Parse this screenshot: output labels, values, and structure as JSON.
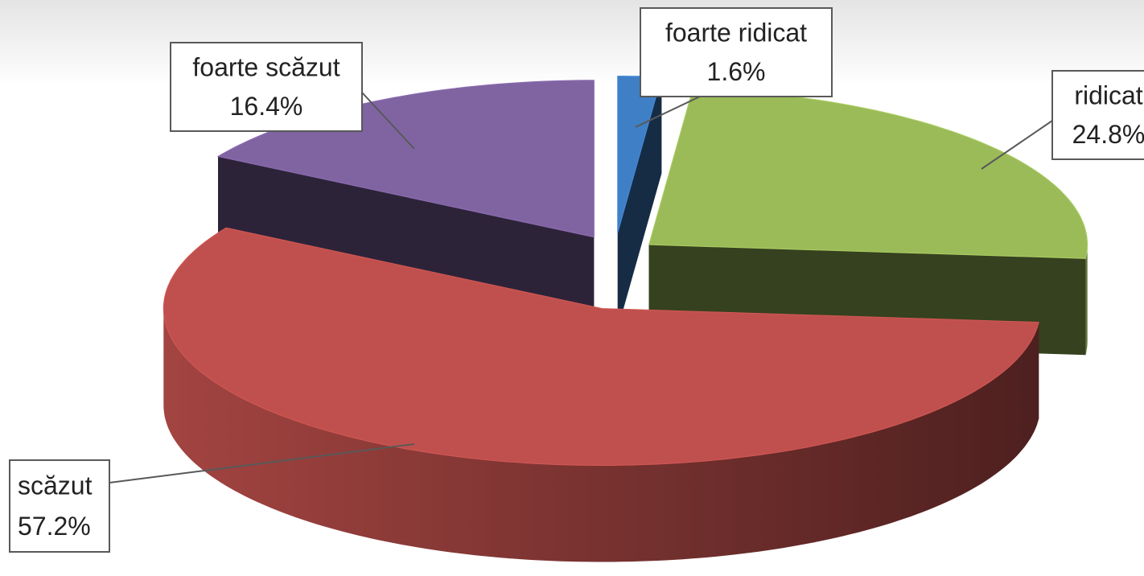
{
  "chart_data": {
    "type": "pie3d",
    "categories": [
      "foarte ridicat",
      "ridicat",
      "scăzut",
      "foarte scăzut"
    ],
    "values": [
      1.6,
      24.8,
      57.2,
      16.4
    ],
    "value_labels": [
      "1.6%",
      "24.8%",
      "57.2%",
      "16.4%"
    ],
    "colors": [
      "#3f7fc6",
      "#9bbb59",
      "#c0504d",
      "#8064a2"
    ]
  }
}
